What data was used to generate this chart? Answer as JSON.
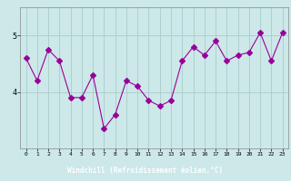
{
  "x": [
    0,
    1,
    2,
    3,
    4,
    5,
    6,
    7,
    8,
    9,
    10,
    11,
    12,
    13,
    14,
    15,
    16,
    17,
    18,
    19,
    20,
    21,
    22,
    23
  ],
  "y": [
    4.6,
    4.2,
    4.75,
    4.55,
    3.9,
    3.9,
    4.3,
    3.35,
    3.6,
    4.2,
    4.1,
    3.85,
    3.75,
    3.85,
    4.55,
    4.8,
    4.65,
    4.9,
    4.55,
    4.65,
    4.7,
    5.05,
    4.55,
    5.05
  ],
  "line_color": "#990099",
  "marker": "D",
  "marker_size": 3,
  "bg_color": "#cce8e8",
  "grid_color": "#aacccc",
  "xlabel": "Windchill (Refroidissement éolien,°C)",
  "xlabel_bg": "#9900aa",
  "ylim": [
    3.0,
    5.5
  ],
  "yticks": [
    4,
    5
  ],
  "xlim": [
    -0.5,
    23.5
  ],
  "xticks": [
    0,
    1,
    2,
    3,
    4,
    5,
    6,
    7,
    8,
    9,
    10,
    11,
    12,
    13,
    14,
    15,
    16,
    17,
    18,
    19,
    20,
    21,
    22,
    23
  ]
}
